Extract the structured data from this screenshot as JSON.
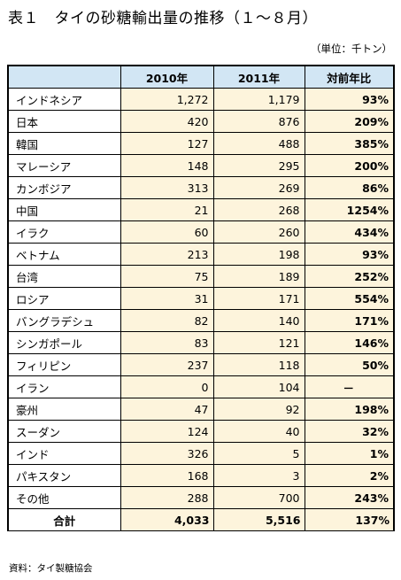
{
  "title": "表１　タイの砂糖輸出量の推移（１～８月）",
  "unit": "（単位：千トン）",
  "source": "資料：タイ製糖協会",
  "chart_data": {
    "type": "table",
    "columns": [
      "",
      "2010年",
      "2011年",
      "対前年比"
    ],
    "rows": [
      {
        "name": "インドネシア",
        "y2010": "1,272",
        "y2011": "1,179",
        "ratio": "93%"
      },
      {
        "name": "日本",
        "y2010": "420",
        "y2011": "876",
        "ratio": "209%"
      },
      {
        "name": "韓国",
        "y2010": "127",
        "y2011": "488",
        "ratio": "385%"
      },
      {
        "name": "マレーシア",
        "y2010": "148",
        "y2011": "295",
        "ratio": "200%"
      },
      {
        "name": "カンボジア",
        "y2010": "313",
        "y2011": "269",
        "ratio": "86%"
      },
      {
        "name": "中国",
        "y2010": "21",
        "y2011": "268",
        "ratio": "1254%"
      },
      {
        "name": "イラク",
        "y2010": "60",
        "y2011": "260",
        "ratio": "434%"
      },
      {
        "name": "ベトナム",
        "y2010": "213",
        "y2011": "198",
        "ratio": "93%"
      },
      {
        "name": "台湾",
        "y2010": "75",
        "y2011": "189",
        "ratio": "252%"
      },
      {
        "name": "ロシア",
        "y2010": "31",
        "y2011": "171",
        "ratio": "554%"
      },
      {
        "name": "バングラデシュ",
        "y2010": "82",
        "y2011": "140",
        "ratio": "171%"
      },
      {
        "name": "シンガポール",
        "y2010": "83",
        "y2011": "121",
        "ratio": "146%"
      },
      {
        "name": "フィリピン",
        "y2010": "237",
        "y2011": "118",
        "ratio": "50%"
      },
      {
        "name": "イラン",
        "y2010": "0",
        "y2011": "104",
        "ratio": "－"
      },
      {
        "name": "豪州",
        "y2010": "47",
        "y2011": "92",
        "ratio": "198%"
      },
      {
        "name": "スーダン",
        "y2010": "124",
        "y2011": "40",
        "ratio": "32%"
      },
      {
        "name": "インド",
        "y2010": "326",
        "y2011": "5",
        "ratio": "1%"
      },
      {
        "name": "パキスタン",
        "y2010": "168",
        "y2011": "3",
        "ratio": "2%"
      },
      {
        "name": "その他",
        "y2010": "288",
        "y2011": "700",
        "ratio": "243%"
      }
    ],
    "total": {
      "name": "合計",
      "y2010": "4,033",
      "y2011": "5,516",
      "ratio": "137%"
    }
  }
}
